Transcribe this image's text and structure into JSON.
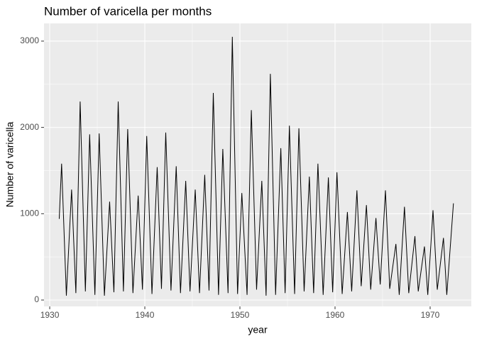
{
  "chart_data": {
    "type": "line",
    "title": "Number of varicella per months",
    "x_label": "year",
    "y_label": "Number of varicella",
    "x": [
      1931.0,
      1931.25,
      1931.75,
      1932.3,
      1932.75,
      1933.2,
      1933.75,
      1934.2,
      1934.75,
      1935.2,
      1935.75,
      1936.3,
      1936.75,
      1937.2,
      1937.75,
      1938.2,
      1938.75,
      1939.3,
      1939.75,
      1940.2,
      1940.75,
      1941.3,
      1941.75,
      1942.2,
      1942.75,
      1943.3,
      1943.75,
      1944.3,
      1944.75,
      1945.3,
      1945.75,
      1946.3,
      1946.75,
      1947.2,
      1947.75,
      1948.2,
      1948.75,
      1949.2,
      1949.75,
      1950.2,
      1950.75,
      1951.2,
      1951.75,
      1952.3,
      1952.75,
      1953.2,
      1953.75,
      1954.3,
      1954.75,
      1955.2,
      1955.75,
      1956.2,
      1956.75,
      1957.3,
      1957.75,
      1958.2,
      1958.75,
      1959.3,
      1959.75,
      1960.2,
      1960.75,
      1961.3,
      1961.75,
      1962.3,
      1962.75,
      1963.3,
      1963.75,
      1964.3,
      1964.75,
      1965.3,
      1965.75,
      1966.4,
      1966.75,
      1967.3,
      1967.75,
      1968.4,
      1968.75,
      1969.4,
      1969.75,
      1970.3,
      1970.75,
      1971.4,
      1971.75,
      1972.45
    ],
    "series": [
      {
        "name": "varicella",
        "color": "#000000",
        "values": [
          940,
          1580,
          50,
          1280,
          80,
          2300,
          100,
          1920,
          60,
          1930,
          50,
          1140,
          90,
          2300,
          100,
          1980,
          80,
          1210,
          120,
          1900,
          70,
          1540,
          130,
          1940,
          110,
          1550,
          80,
          1380,
          100,
          1280,
          80,
          1450,
          110,
          2400,
          60,
          1750,
          80,
          3050,
          70,
          1240,
          60,
          2200,
          120,
          1380,
          50,
          2620,
          60,
          1760,
          80,
          2020,
          70,
          1990,
          100,
          1430,
          80,
          1580,
          60,
          1420,
          90,
          1480,
          70,
          1020,
          100,
          1270,
          160,
          1100,
          120,
          950,
          180,
          1270,
          130,
          650,
          60,
          1080,
          80,
          740,
          100,
          620,
          60,
          1040,
          120,
          720,
          60,
          1120
        ]
      }
    ],
    "xlim": [
      1929.4,
      1974.33
    ],
    "xticks": [
      1930,
      1940,
      1950,
      1960,
      1970
    ],
    "ylim": [
      -74,
      3205
    ],
    "yticks": [
      0,
      1000,
      2000,
      3000
    ],
    "grid": true
  }
}
